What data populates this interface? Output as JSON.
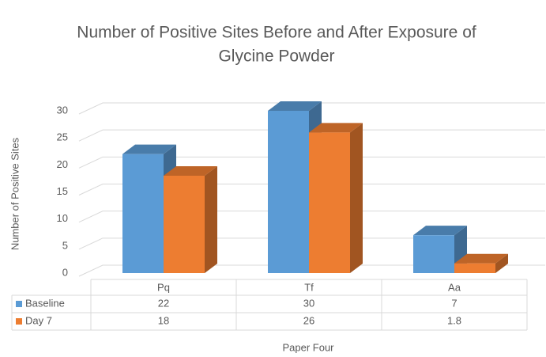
{
  "chart_data": {
    "type": "bar3d",
    "title": [
      "Number of Positive Sites Before and After Exposure of",
      "Glycine Powder"
    ],
    "ylabel": "Number of Positive Sites",
    "xlabel": "Paper Four",
    "categories": [
      "Pq",
      "Tf",
      "Aa"
    ],
    "series": [
      {
        "name": "Baseline",
        "color": "#5b9bd5",
        "values": [
          22,
          30,
          7
        ]
      },
      {
        "name": "Day 7",
        "color": "#ed7d31",
        "values": [
          18,
          26,
          1.8
        ]
      }
    ],
    "ylim": [
      0,
      30
    ],
    "yticks": [
      0,
      5,
      10,
      15,
      20,
      25,
      30
    ],
    "grid": true,
    "data_table": true
  }
}
